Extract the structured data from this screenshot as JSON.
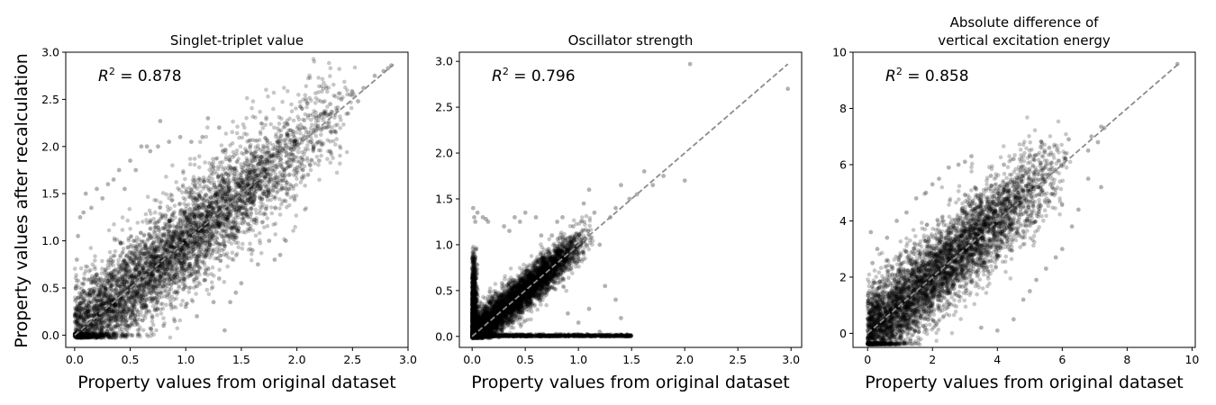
{
  "figure": {
    "ylabel": "Property values after recalculation"
  },
  "chart_data": [
    {
      "type": "scatter",
      "title": "Singlet-triplet value",
      "xlabel": "Property values from original dataset",
      "ylabel": "Property values after recalculation",
      "annotation": {
        "prefix": "R",
        "sup": "2",
        "value": " = 0.878"
      },
      "xlim": [
        -0.08,
        3.0
      ],
      "ylim": [
        -0.13,
        3.0
      ],
      "xticks": [
        "0.0",
        "0.5",
        "1.0",
        "1.5",
        "2.0",
        "2.5",
        "3.0"
      ],
      "yticks": [
        "0.0",
        "0.5",
        "1.0",
        "1.5",
        "2.0",
        "2.5",
        "3.0"
      ],
      "reference_line": [
        [
          0,
          0
        ],
        [
          2.87,
          2.87
        ]
      ],
      "marker_color": "#000000",
      "reference_color": "#8c8c8c",
      "cloud": {
        "x_range": [
          0.0,
          2.55
        ],
        "main_spread": 0.3,
        "near_zero_cluster": false
      },
      "points": [
        [
          2.85,
          2.86
        ],
        [
          2.82,
          2.83
        ],
        [
          2.78,
          2.8
        ],
        [
          2.7,
          2.75
        ],
        [
          2.6,
          2.62
        ],
        [
          2.55,
          2.48
        ],
        [
          2.48,
          2.55
        ],
        [
          2.46,
          2.35
        ],
        [
          2.4,
          2.5
        ],
        [
          2.35,
          2.15
        ],
        [
          2.3,
          1.95
        ],
        [
          2.25,
          2.2
        ],
        [
          2.2,
          1.85
        ],
        [
          2.15,
          2.0
        ],
        [
          2.12,
          1.8
        ],
        [
          2.05,
          2.2
        ],
        [
          1.9,
          1.0
        ],
        [
          1.85,
          0.85
        ],
        [
          1.8,
          0.8
        ],
        [
          1.75,
          1.0
        ],
        [
          1.65,
          0.75
        ],
        [
          1.6,
          0.9
        ],
        [
          1.5,
          0.55
        ],
        [
          1.45,
          0.45
        ],
        [
          1.4,
          0.35
        ],
        [
          1.35,
          0.05
        ],
        [
          1.3,
          0.6
        ],
        [
          1.25,
          0.35
        ],
        [
          1.2,
          2.3
        ],
        [
          1.15,
          2.1
        ],
        [
          1.05,
          2.05
        ],
        [
          0.95,
          2.1
        ],
        [
          0.85,
          2.05
        ],
        [
          0.75,
          2.0
        ],
        [
          0.68,
          1.95
        ],
        [
          0.55,
          1.75
        ],
        [
          0.5,
          1.85
        ],
        [
          0.45,
          1.55
        ],
        [
          0.4,
          1.75
        ],
        [
          0.35,
          1.65
        ],
        [
          0.3,
          1.6
        ],
        [
          0.25,
          1.45
        ],
        [
          0.2,
          1.55
        ],
        [
          0.15,
          1.35
        ],
        [
          0.1,
          1.5
        ],
        [
          0.08,
          1.3
        ],
        [
          0.05,
          1.25
        ],
        [
          0.03,
          1.05
        ],
        [
          0.02,
          0.8
        ],
        [
          0.01,
          0.5
        ],
        [
          0.77,
          2.27
        ],
        [
          0.65,
          2.0
        ],
        [
          1.0,
          0.3
        ],
        [
          0.9,
          0.15
        ],
        [
          0.8,
          0.1
        ],
        [
          1.1,
          0.2
        ],
        [
          1.7,
          1.5
        ],
        [
          2.3,
          2.45
        ],
        [
          2.0,
          2.05
        ],
        [
          0.6,
          2.0
        ],
        [
          1.3,
          2.2
        ],
        [
          2.1,
          1.7
        ]
      ]
    },
    {
      "type": "scatter",
      "title": "Oscillator strength",
      "xlabel": "Property values from original dataset",
      "annotation": {
        "prefix": "R",
        "sup": "2",
        "value": " = 0.796"
      },
      "xlim": [
        -0.12,
        3.1
      ],
      "ylim": [
        -0.12,
        3.1
      ],
      "xticks": [
        "0.0",
        "0.5",
        "1.0",
        "1.5",
        "2.0",
        "2.5",
        "3.0"
      ],
      "yticks": [
        "0.0",
        "0.5",
        "1.0",
        "1.5",
        "2.0",
        "2.5",
        "3.0"
      ],
      "reference_line": [
        [
          0,
          0
        ],
        [
          2.97,
          2.97
        ]
      ],
      "marker_color": "#000000",
      "reference_color": "#8c8c8c",
      "cloud": {
        "x_range": [
          0.0,
          1.15
        ],
        "main_spread": 0.12,
        "near_zero_cluster": true
      },
      "points": [
        [
          2.05,
          2.97
        ],
        [
          2.97,
          2.7
        ],
        [
          1.62,
          1.8
        ],
        [
          1.8,
          1.75
        ],
        [
          2.0,
          1.7
        ],
        [
          1.48,
          1.5
        ],
        [
          1.4,
          1.65
        ],
        [
          1.35,
          1.4
        ],
        [
          1.3,
          1.3
        ],
        [
          1.1,
          1.6
        ],
        [
          1.2,
          1.0
        ],
        [
          1.25,
          0.55
        ],
        [
          1.35,
          0.4
        ],
        [
          1.4,
          0.2
        ],
        [
          1.45,
          0.0
        ],
        [
          1.3,
          0.0
        ],
        [
          1.2,
          0.05
        ],
        [
          0.95,
          1.2
        ],
        [
          0.85,
          1.3
        ],
        [
          0.8,
          1.25
        ],
        [
          0.75,
          1.1
        ],
        [
          0.65,
          1.1
        ],
        [
          0.6,
          1.3
        ],
        [
          0.5,
          1.35
        ],
        [
          0.45,
          1.25
        ],
        [
          0.4,
          1.3
        ],
        [
          0.35,
          1.15
        ],
        [
          0.3,
          1.2
        ],
        [
          0.15,
          1.25
        ],
        [
          0.1,
          1.3
        ],
        [
          0.05,
          1.35
        ],
        [
          0.01,
          1.4
        ],
        [
          0.02,
          1.3
        ],
        [
          0.03,
          1.25
        ],
        [
          0.13,
          1.28
        ],
        [
          1.1,
          0.3
        ],
        [
          1.0,
          0.15
        ],
        [
          0.9,
          0.25
        ],
        [
          1.05,
          1.45
        ],
        [
          1.15,
          1.35
        ],
        [
          1.55,
          1.55
        ],
        [
          1.7,
          1.65
        ]
      ]
    },
    {
      "type": "scatter",
      "title": "Absolute difference of\nvertical excitation energy",
      "xlabel": "Property values from original dataset",
      "annotation": {
        "prefix": "R",
        "sup": "2",
        "value": " = 0.858"
      },
      "xlim": [
        -0.45,
        10.1
      ],
      "ylim": [
        -0.5,
        10.0
      ],
      "xticks": [
        "0",
        "2",
        "4",
        "6",
        "8",
        "10"
      ],
      "yticks": [
        "0",
        "2",
        "4",
        "6",
        "8",
        "10"
      ],
      "reference_line": [
        [
          0,
          0
        ],
        [
          9.6,
          9.6
        ]
      ],
      "marker_color": "#000000",
      "reference_color": "#8c8c8c",
      "cloud": {
        "x_range": [
          0.0,
          6.3
        ],
        "main_spread": 0.85,
        "near_zero_cluster": false
      },
      "points": [
        [
          9.55,
          9.58
        ],
        [
          7.3,
          7.3
        ],
        [
          7.2,
          7.35
        ],
        [
          7.1,
          6.8
        ],
        [
          6.9,
          7.0
        ],
        [
          6.8,
          6.5
        ],
        [
          6.8,
          5.5
        ],
        [
          7.2,
          5.2
        ],
        [
          6.5,
          4.4
        ],
        [
          6.3,
          3.8
        ],
        [
          6.0,
          3.0
        ],
        [
          5.8,
          2.7
        ],
        [
          5.5,
          2.3
        ],
        [
          5.2,
          1.9
        ],
        [
          5.0,
          1.5
        ],
        [
          4.8,
          1.2
        ],
        [
          4.5,
          0.5
        ],
        [
          4.0,
          0.1
        ],
        [
          3.5,
          0.2
        ],
        [
          3.0,
          6.1
        ],
        [
          3.2,
          6.3
        ],
        [
          2.8,
          6.0
        ],
        [
          2.5,
          5.9
        ],
        [
          2.2,
          5.5
        ],
        [
          2.0,
          5.3
        ],
        [
          1.8,
          5.0
        ],
        [
          1.5,
          4.8
        ],
        [
          1.2,
          4.3
        ],
        [
          0.9,
          4.0
        ],
        [
          0.6,
          3.4
        ],
        [
          0.3,
          3.0
        ],
        [
          0.1,
          3.6
        ],
        [
          0.15,
          2.5
        ],
        [
          0.2,
          1.8
        ],
        [
          3.8,
          5.6
        ],
        [
          4.2,
          6.0
        ],
        [
          4.5,
          6.2
        ],
        [
          5.0,
          6.3
        ],
        [
          5.6,
          6.6
        ],
        [
          6.2,
          6.9
        ]
      ]
    }
  ]
}
